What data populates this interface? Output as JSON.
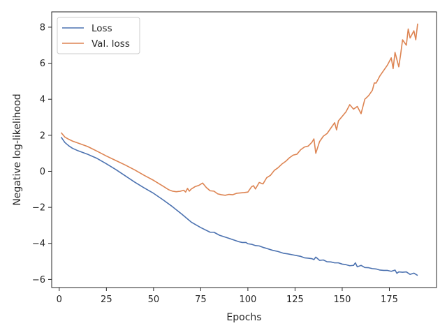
{
  "chart_data": {
    "type": "line",
    "title": "",
    "xlabel": "Epochs",
    "ylabel": "Negative log-likelihood",
    "xlim": [
      -4,
      200
    ],
    "ylim": [
      -6.45,
      8.85
    ],
    "xticks": [
      0,
      25,
      50,
      75,
      100,
      125,
      150,
      175
    ],
    "xtick_labels": [
      "0",
      "25",
      "50",
      "75",
      "100",
      "125",
      "150",
      "175"
    ],
    "yticks": [
      -6,
      -4,
      -2,
      0,
      2,
      4,
      6,
      8
    ],
    "ytick_labels": [
      "−6",
      "−4",
      "−2",
      "0",
      "2",
      "4",
      "6",
      "8"
    ],
    "grid": false,
    "legend_position": "top-left",
    "series": [
      {
        "name": "Loss",
        "color": "#4c72b0",
        "x": [
          1,
          3,
          5,
          7,
          10,
          15,
          20,
          25,
          30,
          35,
          40,
          45,
          50,
          55,
          60,
          65,
          70,
          75,
          80,
          82,
          85,
          90,
          95,
          97,
          99,
          100,
          102,
          104,
          106,
          108,
          110,
          113,
          116,
          119,
          121,
          124,
          126,
          128,
          130,
          132,
          134,
          135,
          136,
          138,
          140,
          142,
          144,
          146,
          148,
          150,
          152,
          154,
          156,
          157,
          158,
          160,
          162,
          164,
          166,
          168,
          170,
          172,
          174,
          176,
          178,
          179,
          180,
          182,
          184,
          186,
          188,
          190
        ],
        "y": [
          1.9,
          1.6,
          1.42,
          1.28,
          1.14,
          0.95,
          0.72,
          0.42,
          0.1,
          -0.25,
          -0.6,
          -0.92,
          -1.22,
          -1.58,
          -1.96,
          -2.38,
          -2.82,
          -3.12,
          -3.38,
          -3.38,
          -3.55,
          -3.72,
          -3.9,
          -3.95,
          -3.95,
          -4.02,
          -4.05,
          -4.12,
          -4.14,
          -4.22,
          -4.28,
          -4.38,
          -4.45,
          -4.55,
          -4.58,
          -4.64,
          -4.68,
          -4.72,
          -4.8,
          -4.82,
          -4.85,
          -4.9,
          -4.76,
          -4.94,
          -4.92,
          -5.02,
          -5.03,
          -5.08,
          -5.08,
          -5.15,
          -5.18,
          -5.24,
          -5.22,
          -5.08,
          -5.3,
          -5.22,
          -5.34,
          -5.35,
          -5.4,
          -5.42,
          -5.48,
          -5.5,
          -5.5,
          -5.55,
          -5.48,
          -5.66,
          -5.58,
          -5.6,
          -5.58,
          -5.72,
          -5.65,
          -5.78
        ]
      },
      {
        "name": "Val. loss",
        "color": "#dd8452",
        "x": [
          1,
          3,
          5,
          7,
          10,
          15,
          20,
          25,
          30,
          35,
          40,
          45,
          50,
          55,
          58,
          60,
          62,
          64,
          66,
          67,
          68,
          69,
          70,
          72,
          74,
          76,
          78,
          80,
          82,
          84,
          86,
          88,
          90,
          92,
          94,
          96,
          98,
          100,
          102,
          103,
          104,
          106,
          108,
          110,
          112,
          114,
          116,
          118,
          120,
          122,
          124,
          126,
          128,
          130,
          132,
          134,
          135,
          136,
          138,
          140,
          142,
          144,
          146,
          147,
          148,
          150,
          152,
          154,
          156,
          158,
          160,
          162,
          164,
          166,
          167,
          168,
          170,
          172,
          174,
          175,
          176,
          177,
          178,
          180,
          181,
          182,
          184,
          185,
          186,
          188,
          189,
          190
        ],
        "y": [
          2.15,
          1.9,
          1.78,
          1.68,
          1.57,
          1.38,
          1.12,
          0.85,
          0.6,
          0.35,
          0.08,
          -0.22,
          -0.5,
          -0.82,
          -1.02,
          -1.1,
          -1.13,
          -1.11,
          -1.05,
          -1.15,
          -0.95,
          -1.1,
          -0.98,
          -0.85,
          -0.78,
          -0.65,
          -0.9,
          -1.08,
          -1.1,
          -1.25,
          -1.3,
          -1.33,
          -1.28,
          -1.3,
          -1.22,
          -1.2,
          -1.18,
          -1.15,
          -0.85,
          -0.8,
          -0.98,
          -0.62,
          -0.7,
          -0.35,
          -0.22,
          0.05,
          0.2,
          0.4,
          0.55,
          0.75,
          0.9,
          0.95,
          1.2,
          1.35,
          1.4,
          1.62,
          1.8,
          1.0,
          1.65,
          1.95,
          2.1,
          2.4,
          2.7,
          2.3,
          2.8,
          3.05,
          3.3,
          3.7,
          3.45,
          3.6,
          3.2,
          4.0,
          4.2,
          4.5,
          4.9,
          4.9,
          5.3,
          5.6,
          5.9,
          6.1,
          6.3,
          5.7,
          6.6,
          5.8,
          6.5,
          7.3,
          7.0,
          7.9,
          7.4,
          7.8,
          7.3,
          8.2
        ]
      }
    ]
  }
}
